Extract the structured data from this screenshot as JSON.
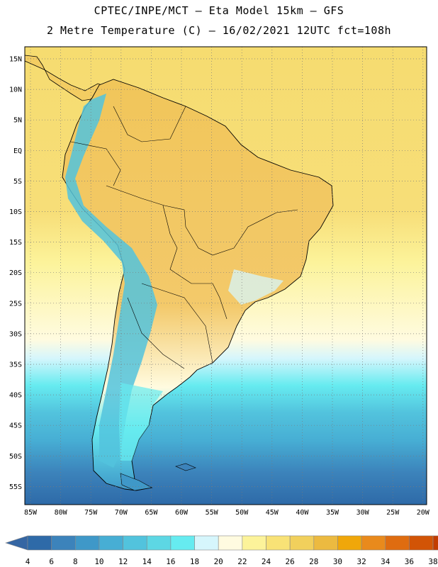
{
  "header": {
    "line1": "CPTEC/INPE/MCT –  Eta Model 15km – GFS",
    "line2": "2 Metre Temperature (C) – 16/02/2021 12UTC fct=108h"
  },
  "map": {
    "lat_labels": [
      "15N",
      "10N",
      "5N",
      "EQ",
      "5S",
      "10S",
      "15S",
      "20S",
      "25S",
      "30S",
      "35S",
      "40S",
      "45S",
      "50S",
      "55S"
    ],
    "lon_labels": [
      "85W",
      "80W",
      "75W",
      "70W",
      "65W",
      "60W",
      "55W",
      "50W",
      "45W",
      "40W",
      "35W",
      "30W",
      "25W",
      "20W"
    ],
    "grid": "dotted",
    "land_outline_color": "#000000",
    "ocean_bands": [
      {
        "lat_range": "15N-25S",
        "value_c": "26-30"
      },
      {
        "lat_range": "25S-38S",
        "value_c": "20-24"
      },
      {
        "lat_range": "38S-45S",
        "value_c": "14-18"
      },
      {
        "lat_range": "45S-56S",
        "value_c": "6-12"
      }
    ]
  },
  "colorbar": {
    "labels": [
      "4",
      "6",
      "8",
      "10",
      "12",
      "14",
      "16",
      "18",
      "20",
      "22",
      "24",
      "26",
      "28",
      "30",
      "32",
      "34",
      "36",
      "38"
    ],
    "colors": [
      "#2e6aa8",
      "#3c83bb",
      "#3f98c8",
      "#47aed4",
      "#52c3dd",
      "#5dd7e4",
      "#66ebf0",
      "#d6f6fc",
      "#fffbe0",
      "#fcf39a",
      "#f8e276",
      "#f1d05c",
      "#ecba40",
      "#f0a70a",
      "#e98a1c",
      "#df6c10",
      "#d25406",
      "#c23c00"
    ],
    "low_color": "#3566a3",
    "high_color": "#c23c00"
  }
}
